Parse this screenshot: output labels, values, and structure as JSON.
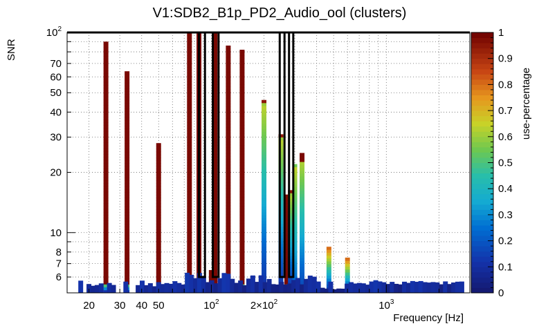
{
  "chart_data": {
    "type": "heatmap",
    "title": "V1:SDB2_B1p_PD2_Audio_ool (clusters)",
    "xlabel": "Frequency [Hz]",
    "ylabel": "SNR",
    "zlabel": "use-percentage",
    "x_scale": "log",
    "y_scale": "log",
    "xlim": [
      15,
      3000
    ],
    "ylim": [
      5,
      100
    ],
    "zlim": [
      0,
      1
    ],
    "grid": true,
    "x_ticks": [
      {
        "value": 20,
        "label": "20"
      },
      {
        "value": 30,
        "label": "30"
      },
      {
        "value": 40,
        "label": "40"
      },
      {
        "value": 50,
        "label": "50"
      },
      {
        "value": 100,
        "label": "10",
        "sup": "2"
      },
      {
        "value": 200,
        "label": "2×10",
        "sup": "2"
      },
      {
        "value": 1000,
        "label": "10",
        "sup": "3"
      }
    ],
    "y_ticks": [
      {
        "value": 6,
        "label": "6"
      },
      {
        "value": 7,
        "label": "7"
      },
      {
        "value": 8,
        "label": "8"
      },
      {
        "value": 10,
        "label": "10"
      },
      {
        "value": 20,
        "label": "20"
      },
      {
        "value": 30,
        "label": "30"
      },
      {
        "value": 40,
        "label": "40"
      },
      {
        "value": 50,
        "label": "50"
      },
      {
        "value": 60,
        "label": "60"
      },
      {
        "value": 70,
        "label": "70"
      },
      {
        "value": 100,
        "label": "10",
        "sup": "2"
      }
    ],
    "z_ticks": [
      "0",
      "0.1",
      "0.2",
      "0.3",
      "0.4",
      "0.5",
      "0.6",
      "0.7",
      "0.8",
      "0.9",
      "1"
    ],
    "columns": [
      {
        "f": 25,
        "top": 90,
        "type": "tall"
      },
      {
        "f": 33,
        "top": 64,
        "type": "tall"
      },
      {
        "f": 50,
        "top": 28,
        "type": "tall"
      },
      {
        "f": 75,
        "top": 100,
        "type": "tall"
      },
      {
        "f": 85,
        "top": 100,
        "type": "tall"
      },
      {
        "f": 100,
        "top": 6.5,
        "type": "tall"
      },
      {
        "f": 105,
        "top": 100,
        "type": "tall"
      },
      {
        "f": 125,
        "top": 86,
        "type": "tall"
      },
      {
        "f": 150,
        "top": 82,
        "type": "tall"
      },
      {
        "f": 200,
        "top": 46,
        "type": "grad"
      },
      {
        "f": 250,
        "top": 31,
        "type": "grad"
      },
      {
        "f": 270,
        "top": 15.5,
        "type": "tall"
      },
      {
        "f": 283,
        "top": 16.3,
        "type": "grad"
      },
      {
        "f": 300,
        "top": 22,
        "type": "grad2"
      },
      {
        "f": 330,
        "top": 25,
        "type": "grad3"
      },
      {
        "f": 470,
        "top": 8.5,
        "type": "small"
      },
      {
        "f": 600,
        "top": 7.5,
        "type": "small"
      }
    ],
    "clusters": [
      {
        "f1": 85,
        "f2": 92,
        "snr1": 6,
        "snr2": 100
      },
      {
        "f1": 102,
        "f2": 110,
        "snr1": 6,
        "snr2": 100
      },
      {
        "f1": 246,
        "f2": 262,
        "snr1": 6,
        "snr2": 100
      },
      {
        "f1": 278,
        "f2": 294,
        "snr1": 6,
        "snr2": 100
      }
    ]
  }
}
